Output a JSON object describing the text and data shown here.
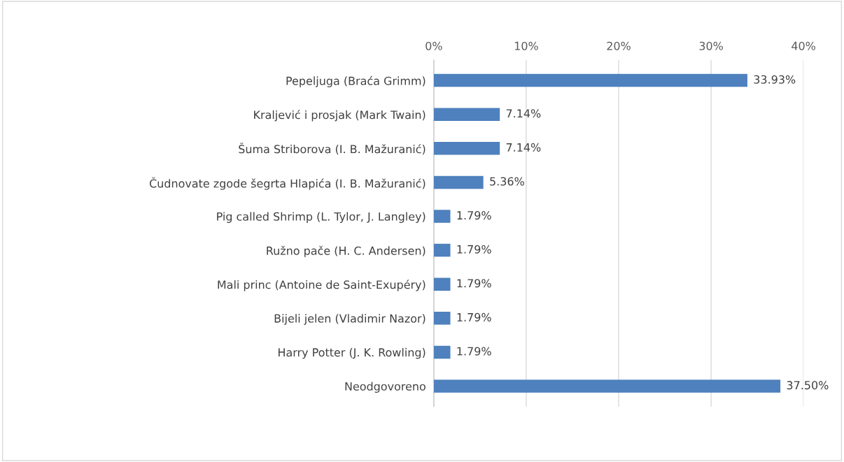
{
  "chart_data": {
    "type": "bar",
    "orientation": "horizontal",
    "categories": [
      "Pepeljuga (Braća Grimm)",
      "Kraljević i prosjak (Mark Twain)",
      "Šuma Striborova (I. B. Mažuranić)",
      "Čudnovate zgode šegrta Hlapića (I. B. Mažuranić)",
      "Pig called Shrimp (L. Tylor, J. Langley)",
      "Ružno pače (H. C. Andersen)",
      "Mali princ (Antoine de Saint-Exupéry)",
      "Bijeli jelen (Vladimir Nazor)",
      "Harry Potter (J. K. Rowling)",
      "Neodgovoreno"
    ],
    "values": [
      33.93,
      7.14,
      7.14,
      5.36,
      1.79,
      1.79,
      1.79,
      1.79,
      1.79,
      37.5
    ],
    "value_labels": [
      "33.93%",
      "7.14%",
      "7.14%",
      "5.36%",
      "1.79%",
      "1.79%",
      "1.79%",
      "1.79%",
      "1.79%",
      "37.50%"
    ],
    "color": "#4e81bd",
    "xlim": [
      0,
      40
    ],
    "xticks": [
      {
        "value": 0,
        "label": "0%"
      },
      {
        "value": 10,
        "label": "10%"
      },
      {
        "value": 20,
        "label": "20%"
      },
      {
        "value": 30,
        "label": "30%"
      },
      {
        "value": 40,
        "label": "40%"
      }
    ],
    "grid": "x",
    "legend": false
  }
}
